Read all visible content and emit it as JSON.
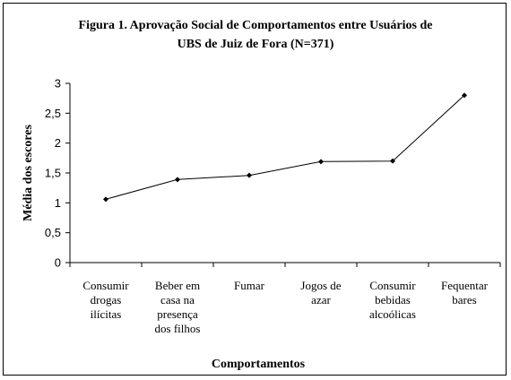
{
  "chart_data": {
    "type": "line",
    "title_lines": [
      "Figura 1. Aprovação Social de Comportamentos entre Usuários de",
      "UBS de Juiz de Fora (N=371)"
    ],
    "xlabel": "Comportamentos",
    "ylabel": "Média dos escores",
    "ylim": [
      0,
      3
    ],
    "yticks": [
      "0",
      "0,5",
      "1",
      "1,5",
      "2",
      "2,5",
      "3"
    ],
    "ytick_values": [
      0,
      0.5,
      1,
      1.5,
      2,
      2.5,
      3
    ],
    "categories": [
      [
        "Consumir",
        "drogas",
        "ilícitas"
      ],
      [
        "Beber em",
        "casa na",
        "presença",
        "dos filhos"
      ],
      [
        "Fumar"
      ],
      [
        "Jogos de",
        "azar"
      ],
      [
        "Consumir",
        "bebidas",
        "alcoólicas"
      ],
      [
        "Fequentar",
        "bares"
      ]
    ],
    "series": [
      {
        "values": [
          1.06,
          1.39,
          1.46,
          1.69,
          1.7,
          2.8
        ],
        "color": "#000000"
      }
    ],
    "grid": false,
    "legend": "none"
  }
}
